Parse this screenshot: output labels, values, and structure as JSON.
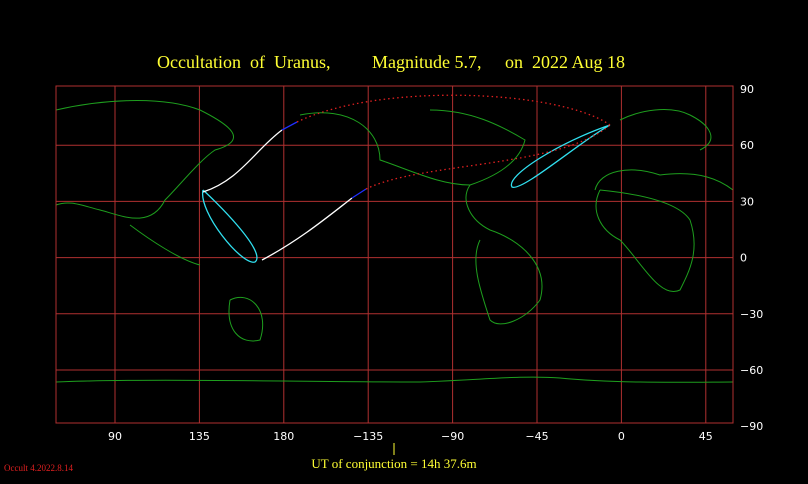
{
  "title": {
    "object": "Occultation  of  Uranus,",
    "magnitude": "Magnitude 5.7,",
    "date": "on  2022 Aug 18"
  },
  "longitude_labels": [
    "90",
    "135",
    "180",
    "−135",
    "−90",
    "−45",
    "0",
    "45"
  ],
  "latitude_labels": [
    "90",
    "60",
    "30",
    "0",
    "−30",
    "−60",
    "−90"
  ],
  "conjunction": "UT of conjunction = 14h 37.6m",
  "version": "Occult 4.2022.8.14"
}
